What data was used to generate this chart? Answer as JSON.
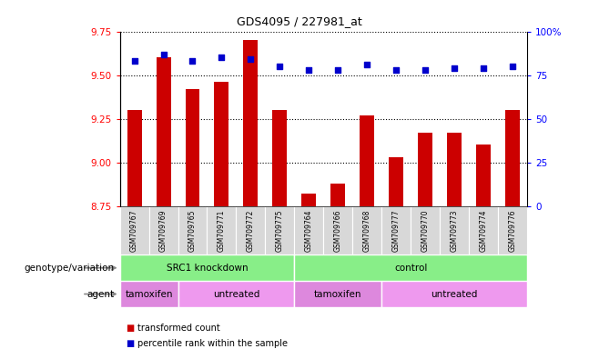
{
  "title": "GDS4095 / 227981_at",
  "samples": [
    "GSM709767",
    "GSM709769",
    "GSM709765",
    "GSM709771",
    "GSM709772",
    "GSM709775",
    "GSM709764",
    "GSM709766",
    "GSM709768",
    "GSM709777",
    "GSM709770",
    "GSM709773",
    "GSM709774",
    "GSM709776"
  ],
  "bar_values": [
    9.3,
    9.6,
    9.42,
    9.46,
    9.7,
    9.3,
    8.82,
    8.88,
    9.27,
    9.03,
    9.17,
    9.17,
    9.1,
    9.3
  ],
  "ymin": 8.75,
  "ymax": 9.75,
  "yticks": [
    8.75,
    9.0,
    9.25,
    9.5,
    9.75
  ],
  "y2ticks": [
    0,
    25,
    50,
    75,
    100
  ],
  "y2ticklabels": [
    "0",
    "25",
    "50",
    "75",
    "100%"
  ],
  "bar_color": "#cc0000",
  "dot_color": "#0000cc",
  "dot_y2_values": [
    83,
    87,
    83,
    85,
    84,
    80,
    78,
    78,
    81,
    78,
    78,
    79,
    79,
    80
  ],
  "genotype_groups": [
    {
      "label": "SRC1 knockdown",
      "start": 0,
      "end": 6,
      "color": "#88ee88"
    },
    {
      "label": "control",
      "start": 6,
      "end": 14,
      "color": "#88ee88"
    }
  ],
  "agent_groups": [
    {
      "label": "tamoxifen",
      "start": 0,
      "end": 2,
      "color": "#dd88dd"
    },
    {
      "label": "untreated",
      "start": 2,
      "end": 6,
      "color": "#ee99ee"
    },
    {
      "label": "tamoxifen",
      "start": 6,
      "end": 9,
      "color": "#dd88dd"
    },
    {
      "label": "untreated",
      "start": 9,
      "end": 14,
      "color": "#ee99ee"
    }
  ],
  "legend_items": [
    {
      "label": "transformed count",
      "color": "#cc0000"
    },
    {
      "label": "percentile rank within the sample",
      "color": "#0000cc"
    }
  ],
  "genotype_label": "genotype/variation",
  "agent_label": "agent",
  "sample_bg": "#d8d8d8",
  "plot_bg": "#ffffff",
  "grid_color": "#000000",
  "grid_style": "dotted"
}
